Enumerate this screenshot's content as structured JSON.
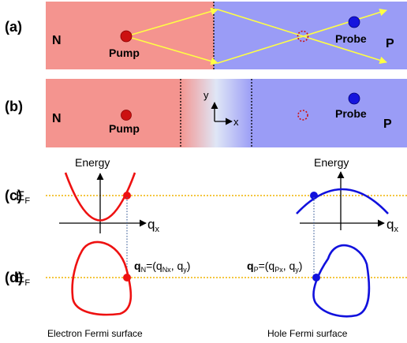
{
  "panels": {
    "a": {
      "tag": "(a)",
      "left_label": "N",
      "right_label": "P",
      "pump_label": "Pump",
      "probe_label": "Probe"
    },
    "b": {
      "tag": "(b)",
      "left_label": "N",
      "right_label": "P",
      "pump_label": "Pump",
      "probe_label": "Probe",
      "axis_x": "x",
      "axis_y": "y"
    },
    "c": {
      "tag": "(c)",
      "ef_main": "E",
      "ef_sub": "F",
      "energy_left": "Energy",
      "energy_right": "Energy",
      "qx_left_main": "q",
      "qx_left_sub": "x",
      "qx_right_main": "q",
      "qx_right_sub": "x"
    },
    "d": {
      "tag": "(d)",
      "ef_main": "E",
      "ef_sub": "F",
      "qn_label": {
        "q": "q",
        "q_sub": "N",
        "eq": "=(q",
        "mid_sub": "Nx",
        "tail": ", q",
        "end_sub": "y",
        "close": ")"
      },
      "qp_label": {
        "q": "q",
        "q_sub": "P",
        "eq": "=(q",
        "mid_sub": "Px",
        "tail": ", q",
        "end_sub": "y",
        "close": ")"
      },
      "electron_caption": "Electron Fermi surface",
      "hole_caption": "Hole Fermi surface"
    }
  },
  "colors": {
    "n_region": "#f4948f",
    "p_region": "#9a9cf6",
    "pump": "#cc1111",
    "probe": "#1515dd",
    "ray": "#ffff44",
    "fermi_level": "#f0b400",
    "electron_curve": "#ee1111",
    "hole_curve": "#1111dd"
  }
}
